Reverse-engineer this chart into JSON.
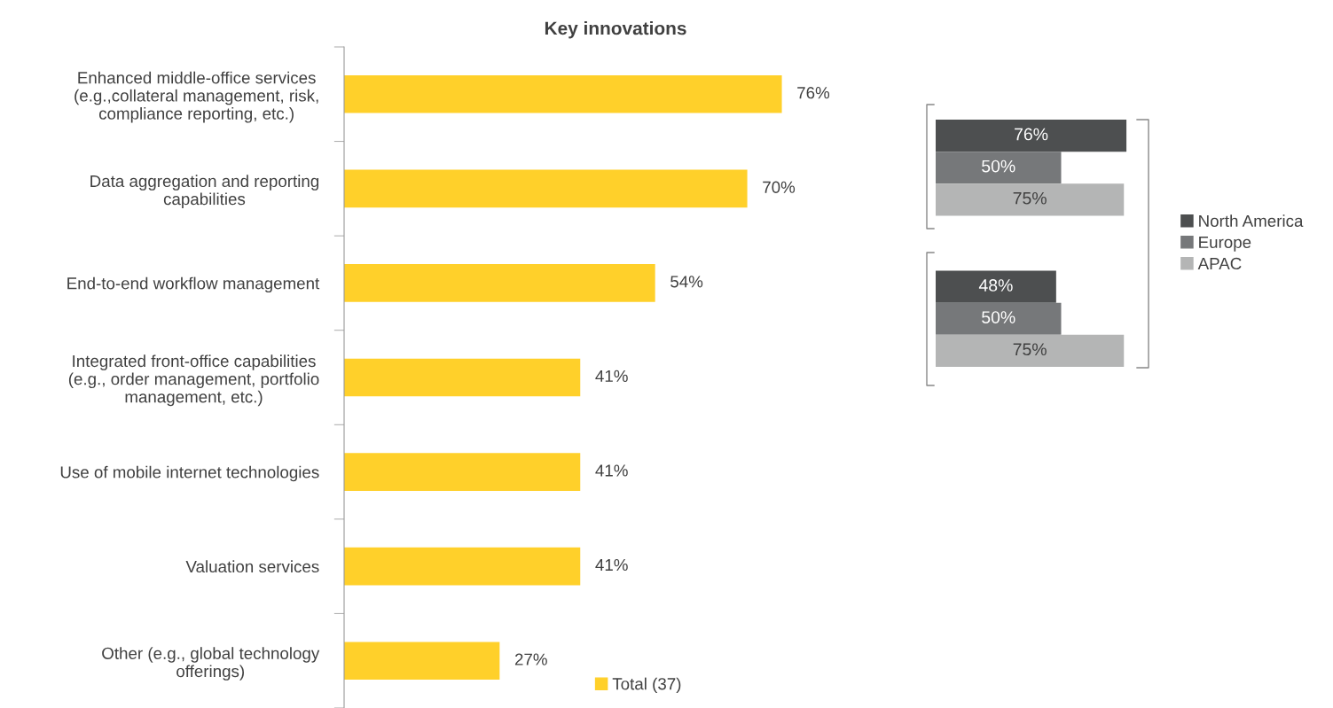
{
  "chart_data": [
    {
      "type": "bar",
      "orientation": "horizontal",
      "title": "Key innovations",
      "categories": [
        "Enhanced middle-office services\n(e.g.,collateral management, risk,\ncompliance reporting, etc.)",
        "Data aggregation and reporting\ncapabilities",
        "End-to-end workflow management",
        "Integrated front-office capabilities\n(e.g., order management, portfolio\nmanagement, etc.)",
        "Use of mobile internet technologies",
        "Valuation services",
        "Other (e.g., global technology\nofferings)"
      ],
      "series": [
        {
          "name": "Total (37)",
          "color": "#ffd02a",
          "values": [
            76,
            70,
            54,
            41,
            41,
            41,
            27
          ],
          "value_labels": [
            "76%",
            "70%",
            "54%",
            "41%",
            "41%",
            "41%",
            "27%"
          ]
        }
      ],
      "legend": "bottom",
      "tick_labels": "y",
      "grid": false
    },
    {
      "type": "bar",
      "orientation": "horizontal",
      "categories": [
        null,
        null
      ],
      "series": [
        {
          "name": "North America",
          "color": "#4d4f50",
          "values": [
            76,
            48
          ],
          "value_labels": [
            "76%",
            "48%"
          ]
        },
        {
          "name": "Europe",
          "color": "#76787a",
          "values": [
            50,
            50
          ],
          "value_labels": [
            "50%",
            "50%"
          ]
        },
        {
          "name": "APAC",
          "color": "#b4b5b5",
          "values": [
            75,
            75
          ],
          "value_labels": [
            "75%",
            "75%"
          ]
        }
      ],
      "legend": "right",
      "tick_labels": false,
      "grid": false
    }
  ]
}
